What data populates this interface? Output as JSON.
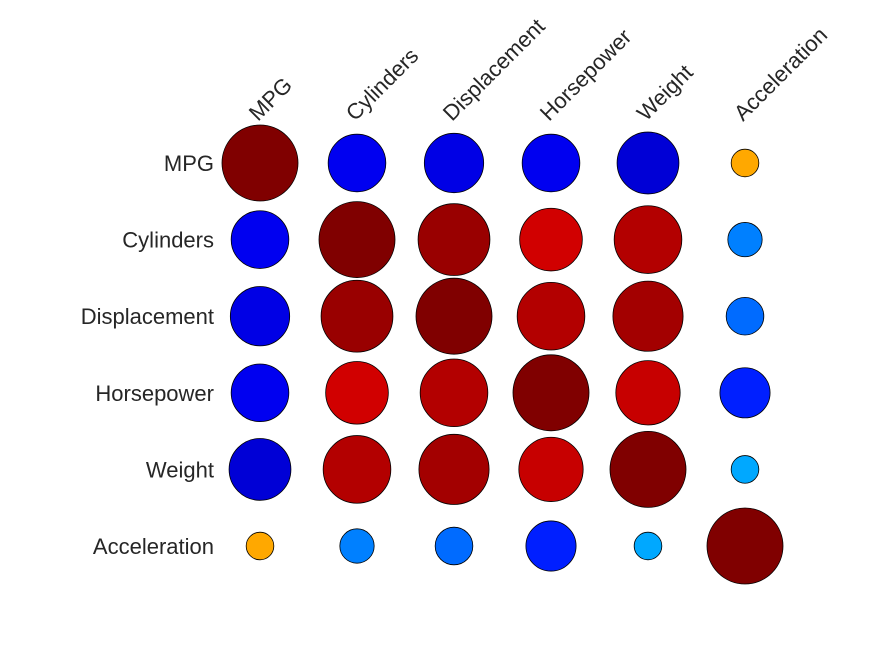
{
  "chart_data": {
    "type": "heatmap",
    "variables": [
      "MPG",
      "Cylinders",
      "Displacement",
      "Horsepower",
      "Weight",
      "Acceleration"
    ],
    "values": [
      [
        1.0,
        -0.78,
        -0.8,
        -0.78,
        -0.83,
        0.42
      ],
      [
        -0.78,
        1.0,
        0.95,
        0.84,
        0.9,
        -0.5
      ],
      [
        -0.8,
        0.95,
        1.0,
        0.9,
        0.93,
        -0.54
      ],
      [
        -0.78,
        0.84,
        0.9,
        1.0,
        0.86,
        -0.69
      ],
      [
        -0.83,
        0.9,
        0.93,
        0.86,
        1.0,
        -0.42
      ],
      [
        0.42,
        -0.5,
        -0.54,
        -0.69,
        -0.42,
        1.0
      ]
    ],
    "value_range": [
      -1,
      1
    ],
    "marker": "circle",
    "size_encodes": "absolute value",
    "colormap": "jet",
    "grid": false,
    "legend": "none",
    "column_label_rotation": "45deg"
  }
}
